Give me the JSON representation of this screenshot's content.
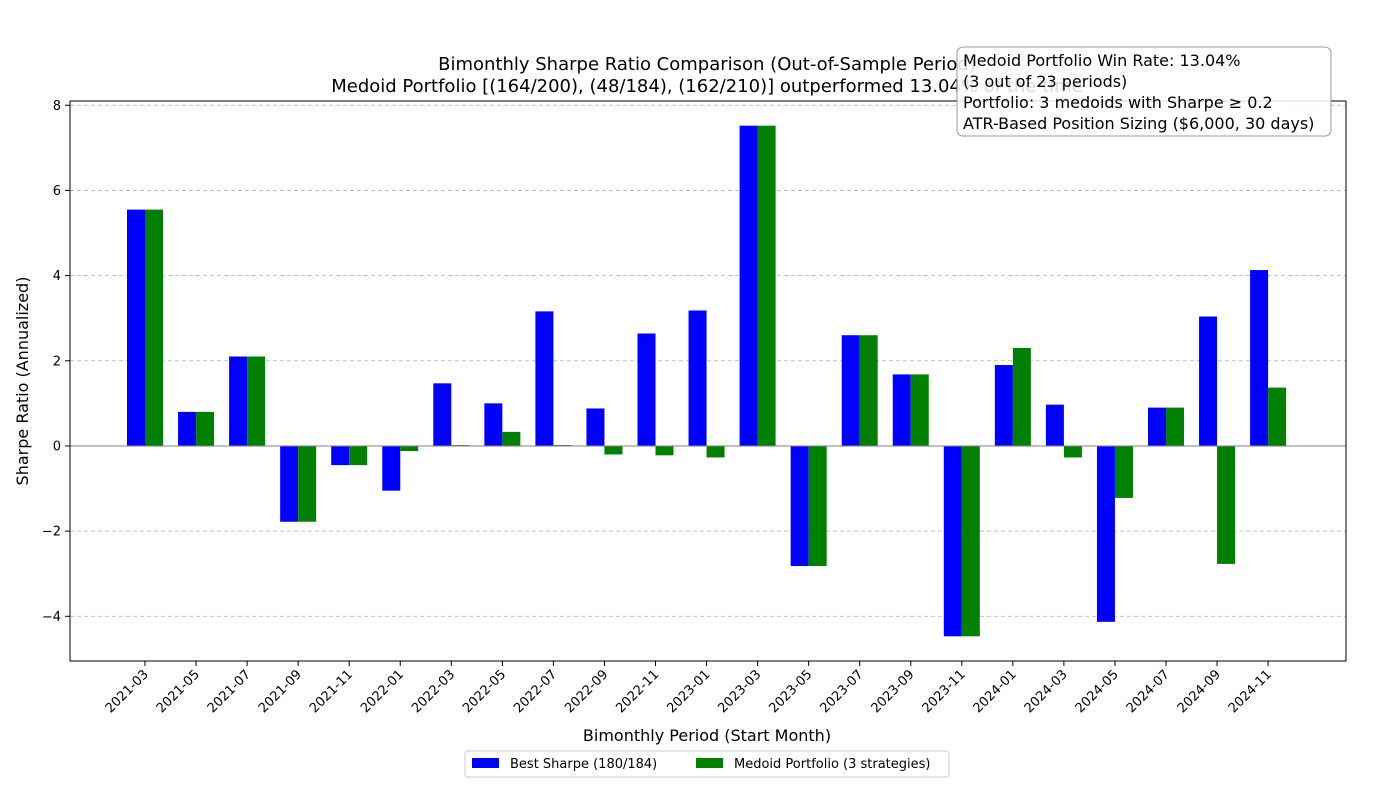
{
  "chart_data": {
    "type": "bar",
    "title_lines": [
      "Bimonthly Sharpe Ratio Comparison (Out-of-Sample Period)",
      "Medoid Portfolio [(164/200), (48/184), (162/210)] outperformed 13.04% of the time"
    ],
    "xlabel": "Bimonthly Period (Start Month)",
    "ylabel": "Sharpe Ratio (Annualized)",
    "ylim": [
      -5.05,
      8.1
    ],
    "yticks": [
      -4,
      -2,
      0,
      2,
      4,
      6,
      8
    ],
    "grid": "horizontal-dashed",
    "legend_position": "bottom-center",
    "categories": [
      "2021-03",
      "2021-05",
      "2021-07",
      "2021-09",
      "2021-11",
      "2022-01",
      "2022-03",
      "2022-05",
      "2022-07",
      "2022-09",
      "2022-11",
      "2023-01",
      "2023-03",
      "2023-05",
      "2023-07",
      "2023-09",
      "2023-11",
      "2024-01",
      "2024-03",
      "2024-05",
      "2024-07",
      "2024-09",
      "2024-11"
    ],
    "series": [
      {
        "name": "Best Sharpe (180/184)",
        "color": "#0000ff",
        "values": [
          5.55,
          0.8,
          2.1,
          -1.78,
          -0.45,
          -1.05,
          1.47,
          1.0,
          3.16,
          0.88,
          2.64,
          3.18,
          7.52,
          -2.82,
          2.6,
          1.68,
          -4.47,
          1.9,
          0.97,
          -4.13,
          0.9,
          3.04,
          4.13
        ]
      },
      {
        "name": "Medoid Portfolio (3 strategies)",
        "color": "#008000",
        "values": [
          5.55,
          0.8,
          2.1,
          -1.78,
          -0.45,
          -0.12,
          0.02,
          0.33,
          0.02,
          -0.2,
          -0.22,
          -0.27,
          7.52,
          -2.82,
          2.6,
          1.68,
          -4.47,
          2.3,
          -0.27,
          -1.22,
          0.9,
          -2.77,
          1.37
        ]
      }
    ],
    "annotation_lines": [
      "Medoid Portfolio Win Rate: 13.04%",
      "(3 out of 23 periods)",
      "Portfolio: 3 medoids with Sharpe ≥ 0.2",
      "ATR-Based Position Sizing ($6,000, 30 days)"
    ]
  }
}
